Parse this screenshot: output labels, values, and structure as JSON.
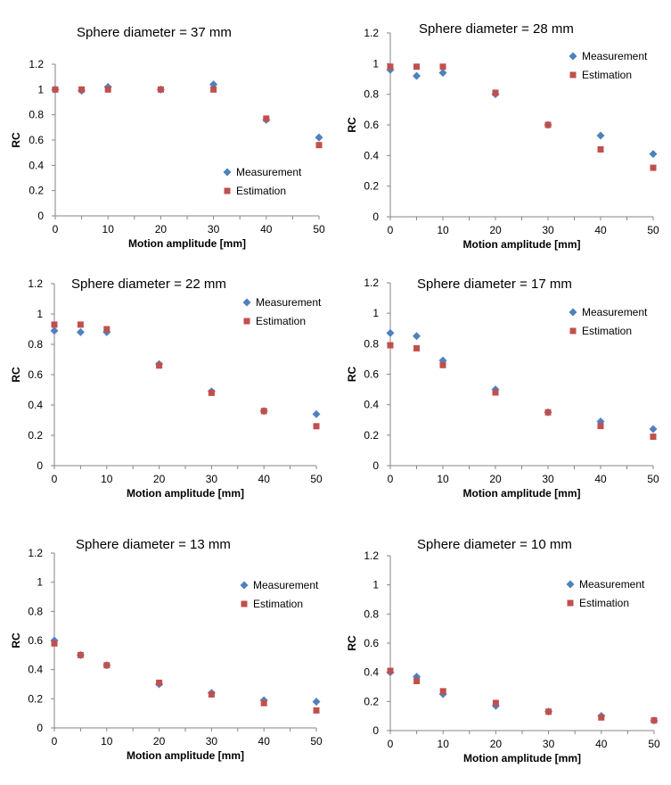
{
  "chart_data": [
    {
      "type": "scatter",
      "title": "Sphere diameter = 37 mm",
      "xlabel": "Motion amplitude [mm]",
      "ylabel": "RC",
      "x_ticks": [
        "0",
        "10",
        "20",
        "30",
        "40",
        "50"
      ],
      "y_ticks": [
        "0",
        "0.2",
        "0.4",
        "0.6",
        "0.8",
        "1",
        "1.2"
      ],
      "xlim": [
        0,
        50
      ],
      "ylim": [
        0,
        1.2
      ],
      "grid": false,
      "legend_position": "right-middle",
      "series": [
        {
          "name": "Measurement",
          "marker": "diamond",
          "color": "#4f81bd",
          "x": [
            0,
            5,
            10,
            20,
            30,
            40,
            50
          ],
          "y": [
            1.0,
            0.99,
            1.02,
            1.0,
            1.04,
            0.76,
            0.62
          ]
        },
        {
          "name": "Estimation",
          "marker": "square",
          "color": "#c0504d",
          "x": [
            0,
            5,
            10,
            20,
            30,
            40,
            50
          ],
          "y": [
            1.0,
            1.0,
            1.0,
            1.0,
            1.0,
            0.77,
            0.56
          ]
        }
      ]
    },
    {
      "type": "scatter",
      "title": "Sphere diameter = 28 mm",
      "xlabel": "Motion amplitude [mm]",
      "ylabel": "RC",
      "x_ticks": [
        "0",
        "10",
        "20",
        "30",
        "40",
        "50"
      ],
      "y_ticks": [
        "0",
        "0.2",
        "0.4",
        "0.6",
        "0.8",
        "1",
        "1.2"
      ],
      "xlim": [
        0,
        50
      ],
      "ylim": [
        0,
        1.2
      ],
      "grid": false,
      "legend_position": "top-right",
      "series": [
        {
          "name": "Measurement",
          "marker": "diamond",
          "color": "#4f81bd",
          "x": [
            0,
            5,
            10,
            20,
            30,
            40,
            50
          ],
          "y": [
            0.96,
            0.92,
            0.94,
            0.8,
            0.6,
            0.53,
            0.41
          ]
        },
        {
          "name": "Estimation",
          "marker": "square",
          "color": "#c0504d",
          "x": [
            0,
            5,
            10,
            20,
            30,
            40,
            50
          ],
          "y": [
            0.98,
            0.98,
            0.98,
            0.81,
            0.6,
            0.44,
            0.32
          ]
        }
      ]
    },
    {
      "type": "scatter",
      "title": "Sphere diameter = 22 mm",
      "xlabel": "Motion amplitude [mm]",
      "ylabel": "RC",
      "x_ticks": [
        "0",
        "10",
        "20",
        "30",
        "40",
        "50"
      ],
      "y_ticks": [
        "0",
        "0.2",
        "0.4",
        "0.6",
        "0.8",
        "1",
        "1.2"
      ],
      "xlim": [
        0,
        50
      ],
      "ylim": [
        0,
        1.2
      ],
      "grid": false,
      "legend_position": "top-right",
      "series": [
        {
          "name": "Measurement",
          "marker": "diamond",
          "color": "#4f81bd",
          "x": [
            0,
            5,
            10,
            20,
            30,
            40,
            50
          ],
          "y": [
            0.89,
            0.88,
            0.88,
            0.67,
            0.49,
            0.36,
            0.34
          ]
        },
        {
          "name": "Estimation",
          "marker": "square",
          "color": "#c0504d",
          "x": [
            0,
            5,
            10,
            20,
            30,
            40,
            50
          ],
          "y": [
            0.93,
            0.93,
            0.9,
            0.66,
            0.48,
            0.36,
            0.26
          ]
        }
      ]
    },
    {
      "type": "scatter",
      "title": "Sphere diameter = 17 mm",
      "xlabel": "Motion amplitude [mm]",
      "ylabel": "RC",
      "x_ticks": [
        "0",
        "10",
        "20",
        "30",
        "40",
        "50"
      ],
      "y_ticks": [
        "0",
        "0.2",
        "0.4",
        "0.6",
        "0.8",
        "1",
        "1.2"
      ],
      "xlim": [
        0,
        50
      ],
      "ylim": [
        0,
        1.2
      ],
      "grid": false,
      "legend_position": "top-right",
      "series": [
        {
          "name": "Measurement",
          "marker": "diamond",
          "color": "#4f81bd",
          "x": [
            0,
            5,
            10,
            20,
            30,
            40,
            50
          ],
          "y": [
            0.87,
            0.85,
            0.69,
            0.5,
            0.35,
            0.29,
            0.24
          ]
        },
        {
          "name": "Estimation",
          "marker": "square",
          "color": "#c0504d",
          "x": [
            0,
            5,
            10,
            20,
            30,
            40,
            50
          ],
          "y": [
            0.79,
            0.77,
            0.66,
            0.48,
            0.35,
            0.26,
            0.19
          ]
        }
      ]
    },
    {
      "type": "scatter",
      "title": "Sphere diameter = 13 mm",
      "xlabel": "Motion amplitude [mm]",
      "ylabel": "RC",
      "x_ticks": [
        "0",
        "10",
        "20",
        "30",
        "40",
        "50"
      ],
      "y_ticks": [
        "0",
        "0.2",
        "0.4",
        "0.6",
        "0.8",
        "1",
        "1.2"
      ],
      "xlim": [
        0,
        50
      ],
      "ylim": [
        0,
        1.2
      ],
      "grid": false,
      "legend_position": "top-right",
      "series": [
        {
          "name": "Measurement",
          "marker": "diamond",
          "color": "#4f81bd",
          "x": [
            0,
            5,
            10,
            20,
            30,
            40,
            50
          ],
          "y": [
            0.6,
            0.5,
            0.43,
            0.3,
            0.24,
            0.19,
            0.18
          ]
        },
        {
          "name": "Estimation",
          "marker": "square",
          "color": "#c0504d",
          "x": [
            0,
            5,
            10,
            20,
            30,
            40,
            50
          ],
          "y": [
            0.58,
            0.5,
            0.43,
            0.31,
            0.23,
            0.17,
            0.12
          ]
        }
      ]
    },
    {
      "type": "scatter",
      "title": "Sphere diameter = 10 mm",
      "xlabel": "Motion amplitude [mm]",
      "ylabel": "RC",
      "x_ticks": [
        "0",
        "10",
        "20",
        "30",
        "40",
        "50"
      ],
      "y_ticks": [
        "0",
        "0.2",
        "0.4",
        "0.6",
        "0.8",
        "1",
        "1.2"
      ],
      "xlim": [
        0,
        50
      ],
      "ylim": [
        0,
        1.2
      ],
      "grid": false,
      "legend_position": "top-right",
      "series": [
        {
          "name": "Measurement",
          "marker": "diamond",
          "color": "#4f81bd",
          "x": [
            0,
            5,
            10,
            20,
            30,
            40,
            50
          ],
          "y": [
            0.4,
            0.37,
            0.25,
            0.17,
            0.13,
            0.1,
            0.07
          ]
        },
        {
          "name": "Estimation",
          "marker": "square",
          "color": "#c0504d",
          "x": [
            0,
            5,
            10,
            20,
            30,
            40,
            50
          ],
          "y": [
            0.41,
            0.34,
            0.27,
            0.19,
            0.13,
            0.09,
            0.07
          ]
        }
      ]
    }
  ]
}
